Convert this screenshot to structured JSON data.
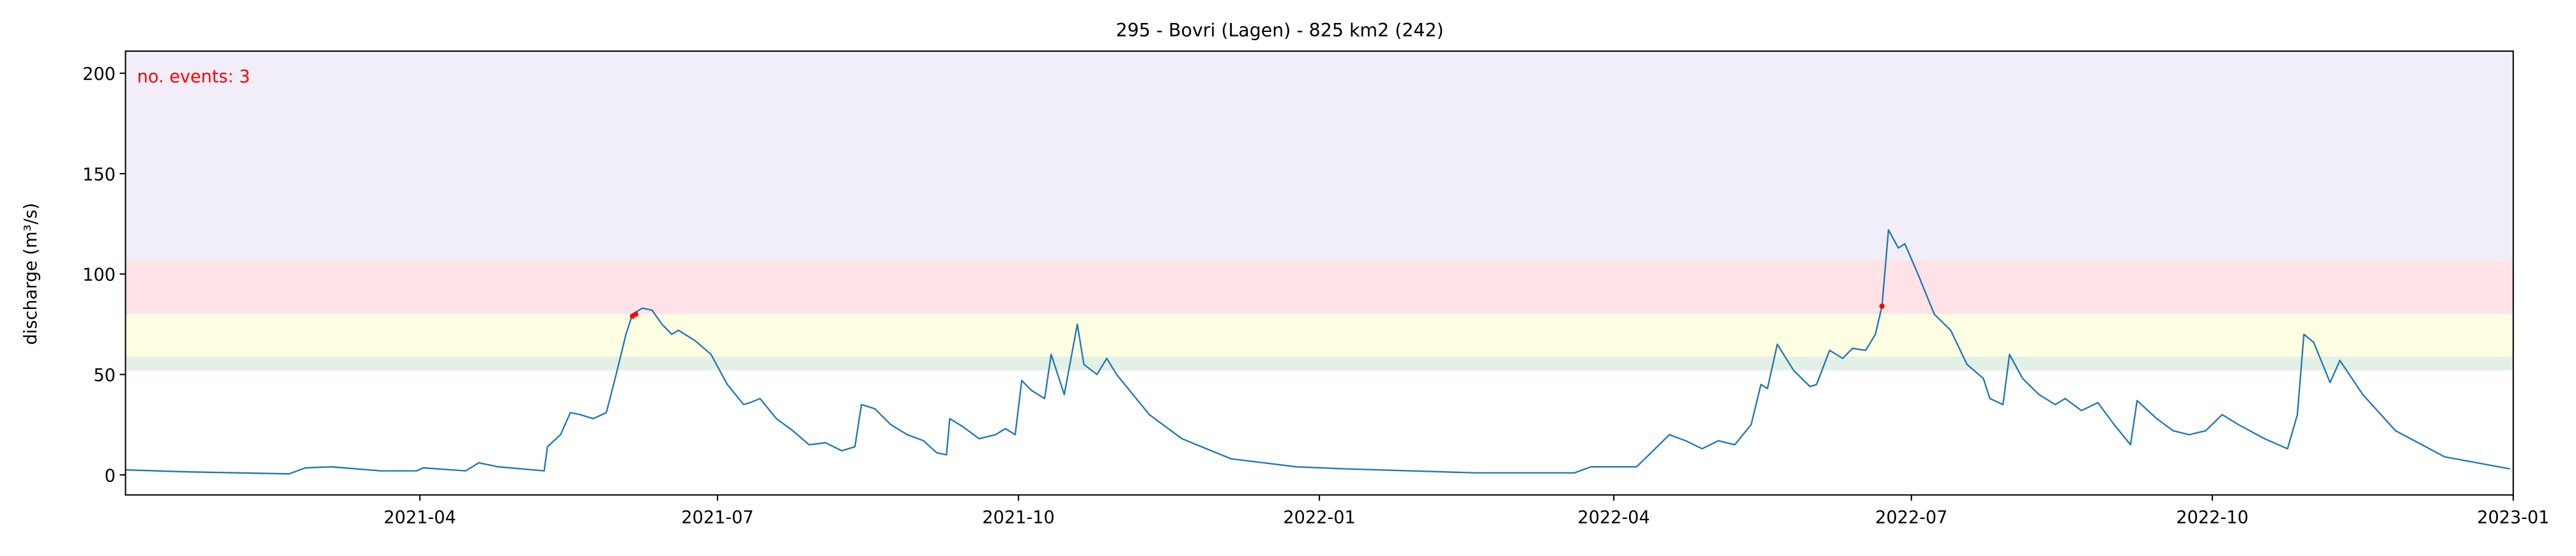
{
  "chart_data": {
    "type": "line",
    "title": "295 - Bovri (Lagen) - 825 km2 (242)",
    "y_label": "discharge (m³/s)",
    "annotation": "no. events: 3",
    "annotation_color": "#ff0000",
    "xlim": [
      "2021-01-01",
      "2023-01-01"
    ],
    "xticks": [
      {
        "value": "2021-04-01",
        "label": "2021-04"
      },
      {
        "value": "2021-07-01",
        "label": "2021-07"
      },
      {
        "value": "2021-10-01",
        "label": "2021-10"
      },
      {
        "value": "2022-01-01",
        "label": "2022-01"
      },
      {
        "value": "2022-04-01",
        "label": "2022-04"
      },
      {
        "value": "2022-07-01",
        "label": "2022-07"
      },
      {
        "value": "2022-10-01",
        "label": "2022-10"
      },
      {
        "value": "2023-01-01",
        "label": "2023-01"
      }
    ],
    "ylim": [
      -10,
      211
    ],
    "yticks": [
      0,
      50,
      100,
      150,
      200
    ],
    "grid": false,
    "bands": [
      {
        "from": 52,
        "to": 59,
        "color": "#e3f0e6"
      },
      {
        "from": 59,
        "to": 80,
        "color": "#fefee3"
      },
      {
        "from": 80,
        "to": 107,
        "color": "#ffe3e6"
      },
      {
        "from": 107,
        "to": 211,
        "color": "#f1eefa"
      }
    ],
    "series": [
      {
        "color": "#1f77b4",
        "x": [
          "2021-01-01",
          "2021-01-20",
          "2021-02-20",
          "2021-02-25",
          "2021-03-05",
          "2021-03-20",
          "2021-03-31",
          "2021-04-02",
          "2021-04-15",
          "2021-04-19",
          "2021-04-25",
          "2021-05-09",
          "2021-05-10",
          "2021-05-14",
          "2021-05-17",
          "2021-05-20",
          "2021-05-24",
          "2021-05-28",
          "2021-05-31",
          "2021-06-03",
          "2021-06-05",
          "2021-06-08",
          "2021-06-11",
          "2021-06-14",
          "2021-06-17",
          "2021-06-19",
          "2021-06-24",
          "2021-06-29",
          "2021-07-04",
          "2021-07-09",
          "2021-07-11",
          "2021-07-14",
          "2021-07-19",
          "2021-07-24",
          "2021-07-29",
          "2021-08-03",
          "2021-08-08",
          "2021-08-12",
          "2021-08-14",
          "2021-08-18",
          "2021-08-23",
          "2021-08-28",
          "2021-09-02",
          "2021-09-06",
          "2021-09-09",
          "2021-09-10",
          "2021-09-14",
          "2021-09-19",
          "2021-09-24",
          "2021-09-27",
          "2021-09-30",
          "2021-10-02",
          "2021-10-05",
          "2021-10-09",
          "2021-10-11",
          "2021-10-15",
          "2021-10-19",
          "2021-10-21",
          "2021-10-25",
          "2021-10-28",
          "2021-10-31",
          "2021-11-10",
          "2021-11-20",
          "2021-12-05",
          "2021-12-25",
          "2022-01-09",
          "2022-02-18",
          "2022-03-20",
          "2022-03-25",
          "2022-04-08",
          "2022-04-13",
          "2022-04-18",
          "2022-04-23",
          "2022-04-28",
          "2022-05-03",
          "2022-05-08",
          "2022-05-13",
          "2022-05-16",
          "2022-05-18",
          "2022-05-21",
          "2022-05-26",
          "2022-05-31",
          "2022-06-02",
          "2022-06-06",
          "2022-06-10",
          "2022-06-13",
          "2022-06-17",
          "2022-06-20",
          "2022-06-22",
          "2022-06-24",
          "2022-06-27",
          "2022-06-29",
          "2022-07-03",
          "2022-07-08",
          "2022-07-13",
          "2022-07-18",
          "2022-07-23",
          "2022-07-25",
          "2022-07-29",
          "2022-07-31",
          "2022-08-04",
          "2022-08-09",
          "2022-08-14",
          "2022-08-17",
          "2022-08-22",
          "2022-08-27",
          "2022-09-01",
          "2022-09-06",
          "2022-09-08",
          "2022-09-14",
          "2022-09-19",
          "2022-09-24",
          "2022-09-29",
          "2022-10-04",
          "2022-10-09",
          "2022-10-17",
          "2022-10-24",
          "2022-10-27",
          "2022-10-29",
          "2022-11-01",
          "2022-11-06",
          "2022-11-09",
          "2022-11-16",
          "2022-11-26",
          "2022-12-11",
          "2022-12-31"
        ],
        "values": [
          2.5,
          1.5,
          0.5,
          3.5,
          4,
          2,
          2,
          3.5,
          2,
          6,
          4,
          2,
          14,
          20,
          31,
          30,
          28,
          31,
          50,
          70,
          80,
          83,
          82,
          75,
          70,
          72,
          67,
          60,
          45,
          35,
          36,
          38,
          28,
          22,
          15,
          16,
          12,
          14,
          35,
          33,
          25,
          20,
          17,
          11,
          10,
          28,
          24,
          18,
          20,
          23,
          20,
          47,
          42,
          38,
          60,
          40,
          75,
          55,
          50,
          58,
          50,
          30,
          18,
          8,
          4,
          3,
          1,
          1,
          4,
          4,
          12,
          20,
          17,
          13,
          17,
          15,
          25,
          45,
          43,
          65,
          52,
          44,
          45,
          62,
          58,
          63,
          62,
          70,
          84,
          122,
          113,
          115,
          100,
          80,
          72,
          55,
          48,
          38,
          35,
          60,
          48,
          40,
          35,
          38,
          32,
          36,
          25,
          15,
          37,
          28,
          22,
          20,
          22,
          30,
          25,
          18,
          13,
          30,
          70,
          66,
          46,
          57,
          40,
          22,
          9,
          3
        ]
      }
    ],
    "events": {
      "color": "#ff0000",
      "x": [
        "2021-06-05",
        "2021-06-06",
        "2022-06-22"
      ],
      "values": [
        79,
        80,
        84
      ]
    }
  }
}
